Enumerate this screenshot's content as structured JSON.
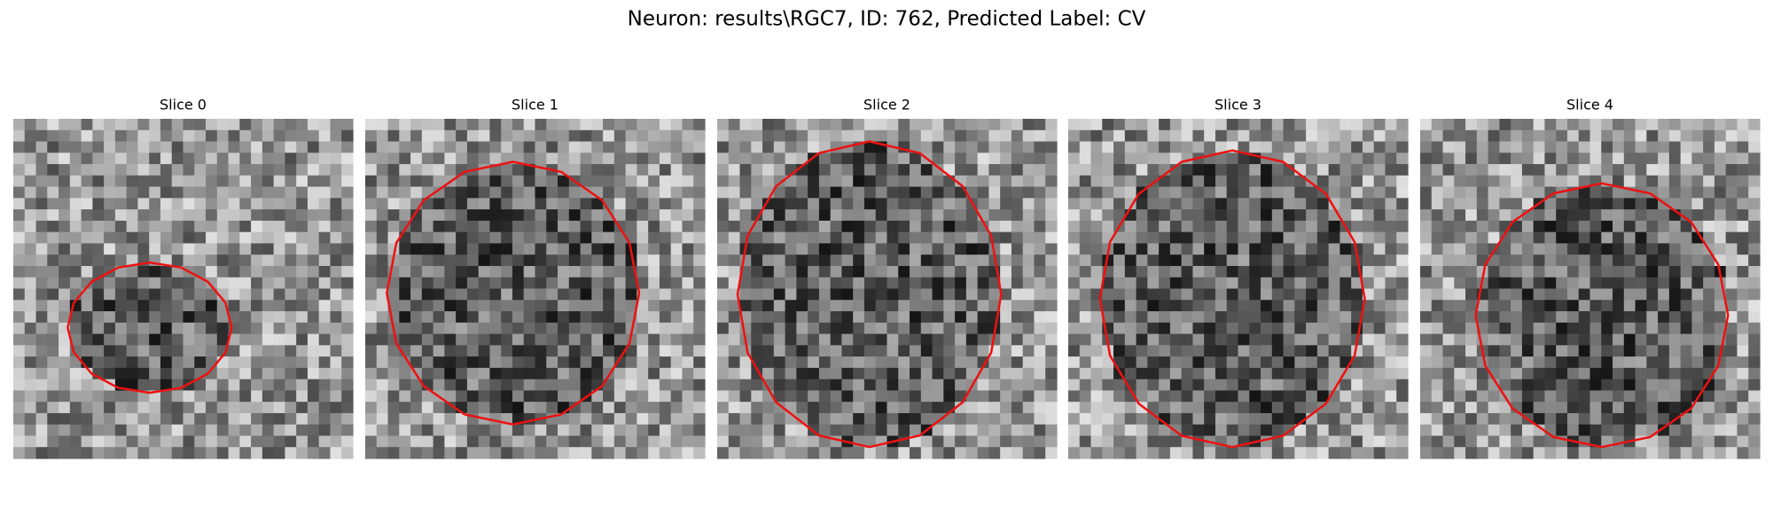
{
  "header": {
    "title": "Neuron: results\\RGC7, ID: 762, Predicted Label: CV"
  },
  "panels": [
    {
      "title": "Slice 0"
    },
    {
      "title": "Slice 1"
    },
    {
      "title": "Slice 2"
    },
    {
      "title": "Slice 3"
    },
    {
      "title": "Slice 4"
    }
  ]
}
